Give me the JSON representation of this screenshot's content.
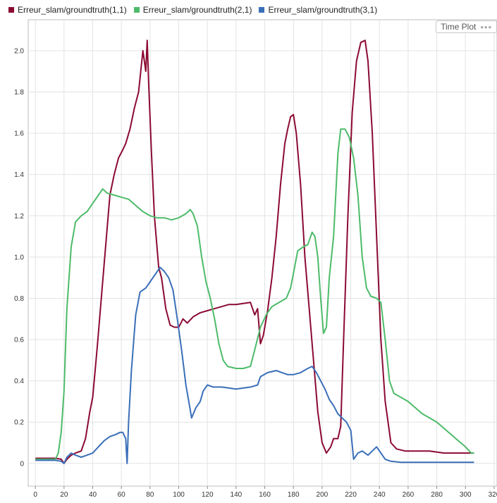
{
  "legend": [
    {
      "label": "Erreur_slam/groundtruth(1,1)",
      "color": "#8b0a32"
    },
    {
      "label": "Erreur_slam/groundtruth(2,1)",
      "color": "#4dbb6a"
    },
    {
      "label": "Erreur_slam/groundtruth(3,1)",
      "color": "#3a6fb8"
    }
  ],
  "badge": {
    "label": "Time Plot",
    "icon": "more-dots-icon"
  },
  "chart_data": {
    "type": "line",
    "xlim": [
      -5,
      322
    ],
    "ylim": [
      -0.11,
      2.15
    ],
    "xticks": [
      0,
      20,
      40,
      60,
      80,
      100,
      120,
      140,
      160,
      180,
      200,
      220,
      240,
      260,
      280,
      300,
      320
    ],
    "yticks": [
      0,
      0.2,
      0.4,
      0.6,
      0.8,
      1.0,
      1.2,
      1.4,
      1.6,
      1.8,
      2.0
    ],
    "ytick_labels": [
      "0",
      "0.2",
      "0.4",
      "0.6",
      "0.8",
      "1.0",
      "1.2",
      "1.4",
      "1.6",
      "1.8",
      "2.0"
    ],
    "grid": true,
    "legend_position": "top",
    "series": [
      {
        "name": "Erreur_slam/groundtruth(1,1)",
        "color": "#8b0a32",
        "points": [
          [
            0,
            0.025
          ],
          [
            14,
            0.025
          ],
          [
            18,
            0.02
          ],
          [
            20,
            0.0
          ],
          [
            22,
            0.02
          ],
          [
            25,
            0.04
          ],
          [
            28,
            0.05
          ],
          [
            32,
            0.06
          ],
          [
            35,
            0.12
          ],
          [
            38,
            0.25
          ],
          [
            40,
            0.32
          ],
          [
            43,
            0.55
          ],
          [
            46,
            0.8
          ],
          [
            49,
            1.05
          ],
          [
            52,
            1.3
          ],
          [
            55,
            1.4
          ],
          [
            58,
            1.48
          ],
          [
            61,
            1.52
          ],
          [
            63,
            1.55
          ],
          [
            66,
            1.62
          ],
          [
            69,
            1.72
          ],
          [
            72,
            1.8
          ],
          [
            75,
            2.0
          ],
          [
            77,
            1.9
          ],
          [
            78,
            2.05
          ],
          [
            79,
            1.85
          ],
          [
            81,
            1.5
          ],
          [
            83,
            1.2
          ],
          [
            86,
            0.95
          ],
          [
            88,
            0.9
          ],
          [
            91,
            0.75
          ],
          [
            94,
            0.67
          ],
          [
            97,
            0.66
          ],
          [
            100,
            0.66
          ],
          [
            103,
            0.7
          ],
          [
            106,
            0.68
          ],
          [
            110,
            0.71
          ],
          [
            115,
            0.73
          ],
          [
            120,
            0.74
          ],
          [
            125,
            0.75
          ],
          [
            130,
            0.76
          ],
          [
            135,
            0.77
          ],
          [
            140,
            0.77
          ],
          [
            150,
            0.78
          ],
          [
            153,
            0.72
          ],
          [
            155,
            0.75
          ],
          [
            157,
            0.58
          ],
          [
            159,
            0.62
          ],
          [
            162,
            0.74
          ],
          [
            165,
            0.9
          ],
          [
            168,
            1.1
          ],
          [
            171,
            1.35
          ],
          [
            174,
            1.55
          ],
          [
            176,
            1.62
          ],
          [
            178,
            1.68
          ],
          [
            180,
            1.69
          ],
          [
            182,
            1.6
          ],
          [
            185,
            1.35
          ],
          [
            188,
            1.0
          ],
          [
            191,
            0.75
          ],
          [
            194,
            0.5
          ],
          [
            197,
            0.25
          ],
          [
            200,
            0.1
          ],
          [
            203,
            0.05
          ],
          [
            206,
            0.08
          ],
          [
            208,
            0.12
          ],
          [
            211,
            0.12
          ],
          [
            213,
            0.18
          ],
          [
            215,
            0.6
          ],
          [
            218,
            1.2
          ],
          [
            221,
            1.7
          ],
          [
            224,
            1.95
          ],
          [
            227,
            2.04
          ],
          [
            230,
            2.05
          ],
          [
            232,
            1.95
          ],
          [
            235,
            1.6
          ],
          [
            238,
            1.1
          ],
          [
            241,
            0.6
          ],
          [
            244,
            0.3
          ],
          [
            248,
            0.1
          ],
          [
            252,
            0.07
          ],
          [
            258,
            0.06
          ],
          [
            265,
            0.06
          ],
          [
            275,
            0.06
          ],
          [
            285,
            0.05
          ],
          [
            300,
            0.05
          ],
          [
            306,
            0.05
          ]
        ]
      },
      {
        "name": "Erreur_slam/groundtruth(2,1)",
        "color": "#4dbb6a",
        "points": [
          [
            0,
            0.02
          ],
          [
            14,
            0.02
          ],
          [
            16,
            0.05
          ],
          [
            18,
            0.15
          ],
          [
            20,
            0.35
          ],
          [
            22,
            0.75
          ],
          [
            25,
            1.05
          ],
          [
            28,
            1.17
          ],
          [
            32,
            1.2
          ],
          [
            36,
            1.22
          ],
          [
            40,
            1.26
          ],
          [
            44,
            1.3
          ],
          [
            47,
            1.33
          ],
          [
            50,
            1.31
          ],
          [
            55,
            1.3
          ],
          [
            60,
            1.29
          ],
          [
            65,
            1.28
          ],
          [
            70,
            1.25
          ],
          [
            75,
            1.22
          ],
          [
            80,
            1.2
          ],
          [
            85,
            1.19
          ],
          [
            90,
            1.19
          ],
          [
            95,
            1.18
          ],
          [
            100,
            1.19
          ],
          [
            105,
            1.21
          ],
          [
            108,
            1.23
          ],
          [
            110,
            1.21
          ],
          [
            113,
            1.15
          ],
          [
            116,
            1.0
          ],
          [
            119,
            0.88
          ],
          [
            122,
            0.8
          ],
          [
            125,
            0.7
          ],
          [
            128,
            0.58
          ],
          [
            131,
            0.5
          ],
          [
            134,
            0.47
          ],
          [
            140,
            0.46
          ],
          [
            145,
            0.46
          ],
          [
            150,
            0.47
          ],
          [
            153,
            0.55
          ],
          [
            157,
            0.66
          ],
          [
            161,
            0.72
          ],
          [
            165,
            0.76
          ],
          [
            170,
            0.78
          ],
          [
            175,
            0.8
          ],
          [
            178,
            0.85
          ],
          [
            180,
            0.92
          ],
          [
            183,
            1.03
          ],
          [
            187,
            1.05
          ],
          [
            190,
            1.06
          ],
          [
            193,
            1.12
          ],
          [
            195,
            1.1
          ],
          [
            197,
            1.0
          ],
          [
            199,
            0.8
          ],
          [
            201,
            0.63
          ],
          [
            203,
            0.66
          ],
          [
            205,
            0.9
          ],
          [
            208,
            1.1
          ],
          [
            211,
            1.5
          ],
          [
            213,
            1.62
          ],
          [
            216,
            1.62
          ],
          [
            219,
            1.58
          ],
          [
            222,
            1.48
          ],
          [
            225,
            1.3
          ],
          [
            228,
            1.0
          ],
          [
            231,
            0.85
          ],
          [
            234,
            0.81
          ],
          [
            238,
            0.8
          ],
          [
            241,
            0.78
          ],
          [
            244,
            0.6
          ],
          [
            247,
            0.4
          ],
          [
            250,
            0.34
          ],
          [
            255,
            0.32
          ],
          [
            260,
            0.3
          ],
          [
            265,
            0.27
          ],
          [
            270,
            0.24
          ],
          [
            275,
            0.22
          ],
          [
            280,
            0.2
          ],
          [
            285,
            0.17
          ],
          [
            290,
            0.14
          ],
          [
            295,
            0.11
          ],
          [
            300,
            0.08
          ],
          [
            304,
            0.05
          ],
          [
            306,
            0.05
          ]
        ]
      },
      {
        "name": "Erreur_slam/groundtruth(3,1)",
        "color": "#3a6fb8",
        "points": [
          [
            0,
            0.015
          ],
          [
            14,
            0.015
          ],
          [
            18,
            0.01
          ],
          [
            20,
            0.0
          ],
          [
            22,
            0.03
          ],
          [
            25,
            0.05
          ],
          [
            28,
            0.04
          ],
          [
            32,
            0.03
          ],
          [
            36,
            0.04
          ],
          [
            40,
            0.05
          ],
          [
            44,
            0.08
          ],
          [
            48,
            0.11
          ],
          [
            52,
            0.13
          ],
          [
            56,
            0.14
          ],
          [
            59,
            0.15
          ],
          [
            61,
            0.15
          ],
          [
            63,
            0.12
          ],
          [
            64,
            0.0
          ],
          [
            65,
            0.2
          ],
          [
            67,
            0.45
          ],
          [
            70,
            0.72
          ],
          [
            73,
            0.83
          ],
          [
            77,
            0.85
          ],
          [
            80,
            0.88
          ],
          [
            84,
            0.92
          ],
          [
            87,
            0.95
          ],
          [
            90,
            0.93
          ],
          [
            93,
            0.9
          ],
          [
            96,
            0.84
          ],
          [
            99,
            0.7
          ],
          [
            102,
            0.55
          ],
          [
            105,
            0.38
          ],
          [
            107,
            0.3
          ],
          [
            109,
            0.22
          ],
          [
            112,
            0.27
          ],
          [
            115,
            0.3
          ],
          [
            117,
            0.35
          ],
          [
            120,
            0.38
          ],
          [
            124,
            0.37
          ],
          [
            130,
            0.37
          ],
          [
            140,
            0.36
          ],
          [
            150,
            0.37
          ],
          [
            155,
            0.38
          ],
          [
            157,
            0.42
          ],
          [
            162,
            0.44
          ],
          [
            168,
            0.45
          ],
          [
            172,
            0.44
          ],
          [
            176,
            0.43
          ],
          [
            180,
            0.43
          ],
          [
            185,
            0.44
          ],
          [
            190,
            0.46
          ],
          [
            193,
            0.47
          ],
          [
            196,
            0.44
          ],
          [
            199,
            0.4
          ],
          [
            202,
            0.36
          ],
          [
            205,
            0.31
          ],
          [
            208,
            0.28
          ],
          [
            211,
            0.24
          ],
          [
            214,
            0.22
          ],
          [
            217,
            0.2
          ],
          [
            220,
            0.16
          ],
          [
            222,
            0.02
          ],
          [
            225,
            0.05
          ],
          [
            228,
            0.06
          ],
          [
            232,
            0.04
          ],
          [
            235,
            0.06
          ],
          [
            238,
            0.08
          ],
          [
            241,
            0.05
          ],
          [
            244,
            0.02
          ],
          [
            248,
            0.01
          ],
          [
            255,
            0.005
          ],
          [
            265,
            0.005
          ],
          [
            280,
            0.005
          ],
          [
            306,
            0.005
          ]
        ]
      }
    ]
  }
}
